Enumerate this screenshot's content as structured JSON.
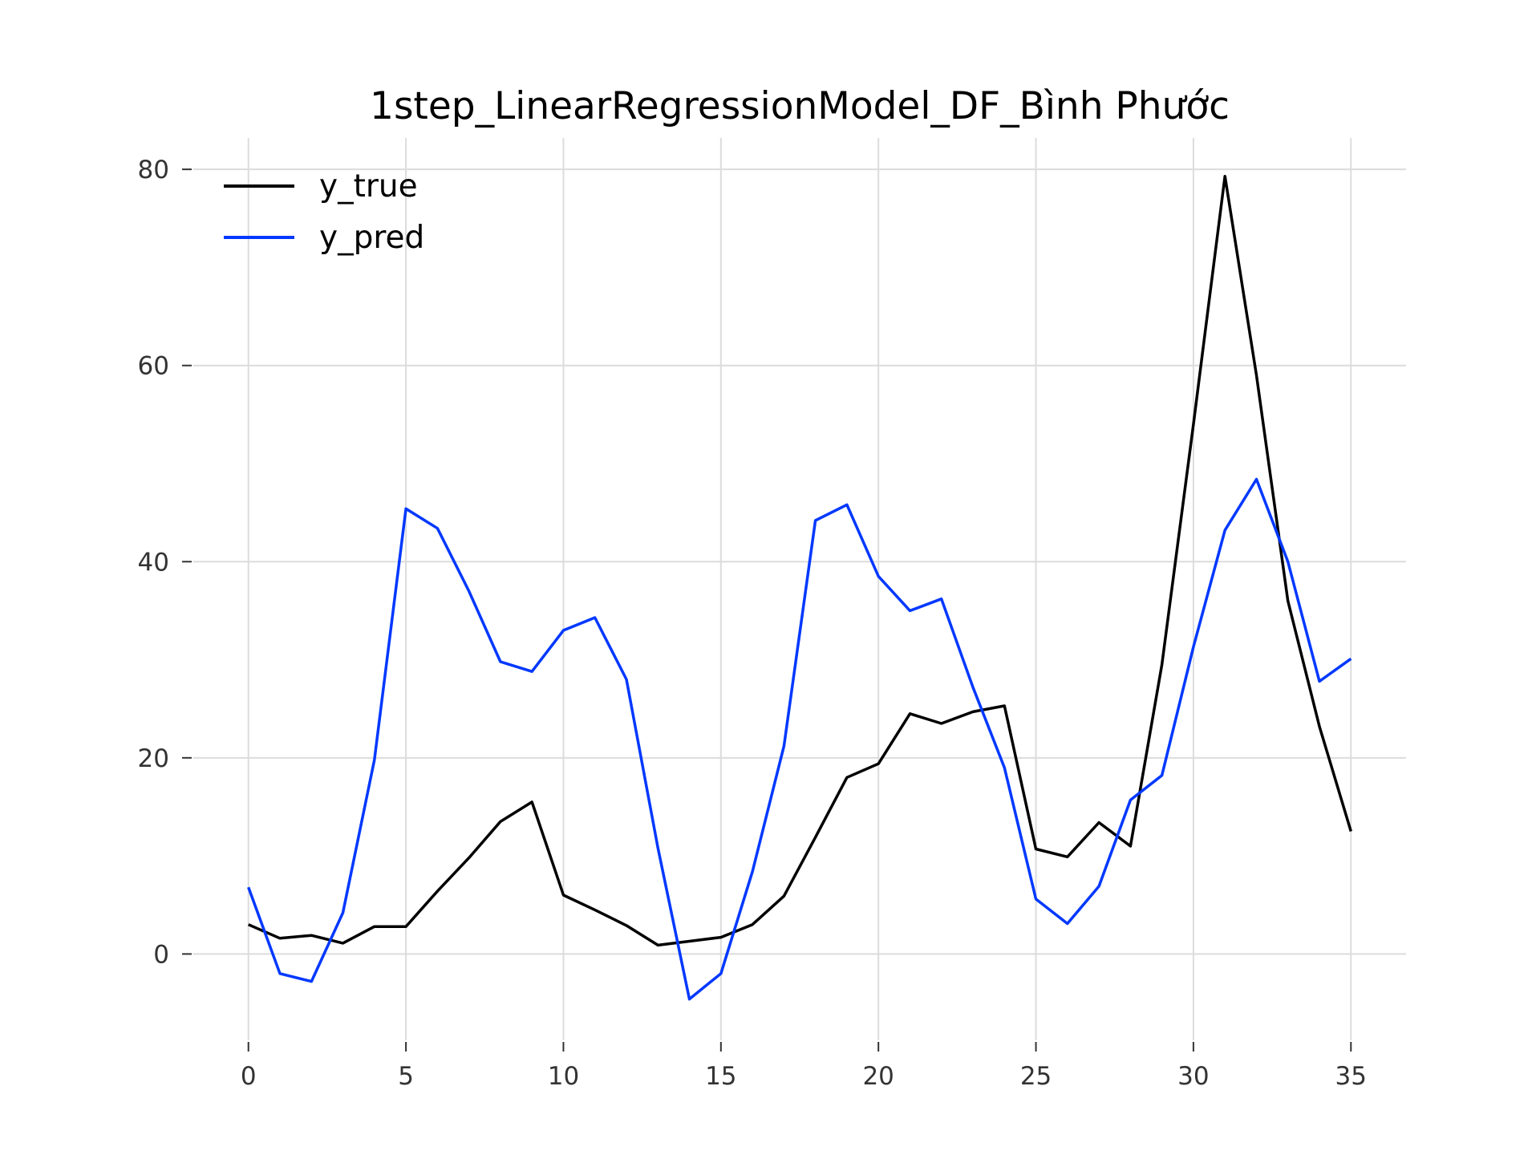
{
  "chart_data": {
    "type": "line",
    "title": "1step_LinearRegressionModel_DF_Bình Phước",
    "xlabel": "",
    "ylabel": "",
    "xlim": [
      -1.75,
      36.75
    ],
    "ylim": [
      -8.8,
      83.2
    ],
    "xticks": [
      0,
      5,
      10,
      15,
      20,
      25,
      30,
      35
    ],
    "yticks": [
      0,
      20,
      40,
      60,
      80
    ],
    "grid": true,
    "legend_position": "top-left",
    "x": [
      0,
      1,
      2,
      3,
      4,
      5,
      6,
      7,
      8,
      9,
      10,
      11,
      12,
      13,
      14,
      15,
      16,
      17,
      18,
      19,
      20,
      21,
      22,
      23,
      24,
      25,
      26,
      27,
      28,
      29,
      30,
      31,
      32,
      33,
      34,
      35
    ],
    "series": [
      {
        "name": "y_true",
        "color": "#000000",
        "values": [
          3.0,
          1.6,
          1.9,
          1.1,
          2.8,
          2.8,
          6.4,
          9.8,
          13.5,
          15.5,
          6.0,
          4.5,
          2.9,
          0.9,
          1.3,
          1.7,
          3.0,
          5.9,
          11.9,
          18.0,
          19.4,
          24.5,
          23.5,
          24.7,
          25.3,
          10.7,
          9.9,
          13.4,
          11.0,
          29.5,
          54.0,
          79.3,
          59.0,
          36.0,
          23.2,
          12.5
        ]
      },
      {
        "name": "y_pred",
        "color": "#0038ff",
        "values": [
          6.8,
          -2.0,
          -2.8,
          4.2,
          19.8,
          45.4,
          43.4,
          37.0,
          29.8,
          28.8,
          33.0,
          34.3,
          28.0,
          10.8,
          -4.6,
          -2.0,
          8.4,
          21.2,
          44.2,
          45.8,
          38.5,
          35.0,
          36.2,
          27.2,
          19.0,
          5.6,
          3.1,
          6.9,
          15.7,
          18.2,
          31.3,
          43.2,
          48.4,
          40.0,
          27.8,
          30.1
        ]
      }
    ]
  }
}
